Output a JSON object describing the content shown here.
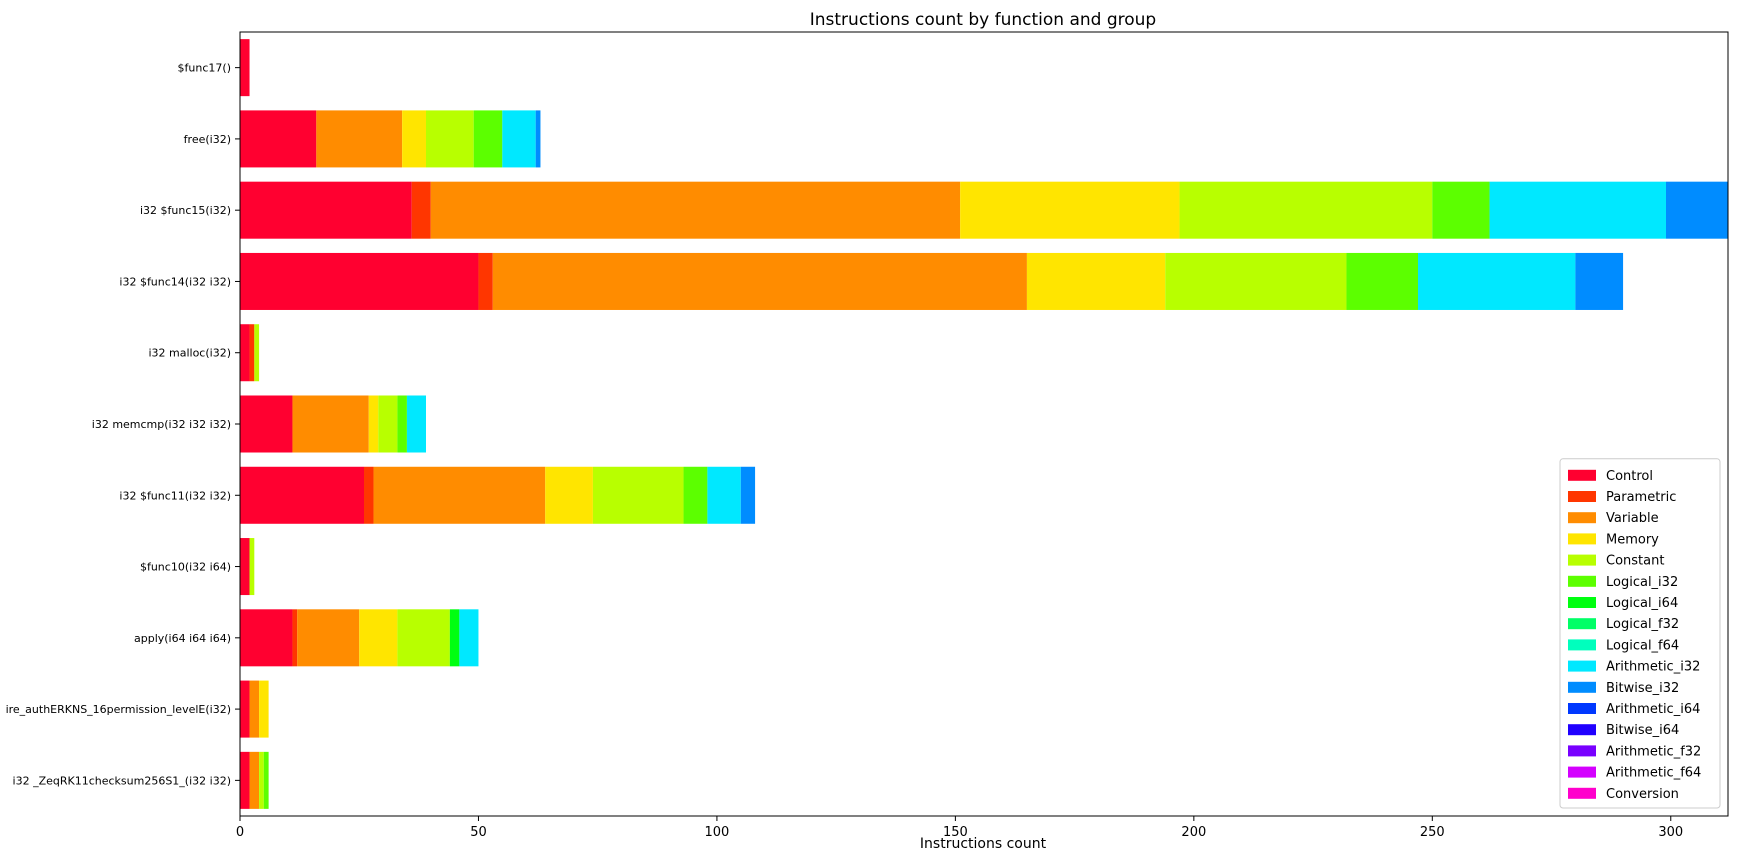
{
  "chart_data": {
    "type": "bar",
    "orientation": "horizontal",
    "stacked": true,
    "title": "Instructions count by function and group",
    "xlabel": "Instructions count",
    "ylabel": "",
    "xlim": [
      0,
      312
    ],
    "x_ticks": [
      0,
      50,
      100,
      150,
      200,
      250,
      300
    ],
    "grid": false,
    "legend_position": "lower-right",
    "categories": [
      "$func17()",
      "free(i32)",
      "i32 $func15(i32)",
      "i32 $func14(i32 i32)",
      "i32 malloc(i32)",
      "i32 memcmp(i32 i32 i32)",
      "i32 $func11(i32 i32)",
      "$func10(i32 i64)",
      "apply(i64 i64 i64)",
      "ire_authERKNS_16permission_levelE(i32)",
      "i32 _ZeqRK11checksum256S1_(i32 i32)"
    ],
    "series": [
      {
        "name": "Control",
        "color": "#ff0030",
        "values": [
          2,
          16,
          36,
          50,
          2,
          11,
          26,
          2,
          11,
          2,
          2
        ]
      },
      {
        "name": "Parametric",
        "color": "#ff3600",
        "values": [
          0,
          0,
          4,
          3,
          1,
          0,
          2,
          0,
          1,
          0,
          0
        ]
      },
      {
        "name": "Variable",
        "color": "#ff8c00",
        "values": [
          0,
          18,
          111,
          112,
          0,
          16,
          36,
          0,
          13,
          2,
          2
        ]
      },
      {
        "name": "Memory",
        "color": "#ffe500",
        "values": [
          0,
          5,
          46,
          29,
          0,
          2,
          10,
          0,
          8,
          2,
          0
        ]
      },
      {
        "name": "Constant",
        "color": "#b8ff00",
        "values": [
          0,
          10,
          53,
          38,
          1,
          4,
          19,
          1,
          11,
          0,
          1
        ]
      },
      {
        "name": "Logical_i32",
        "color": "#5cff00",
        "values": [
          0,
          6,
          12,
          15,
          0,
          2,
          5,
          0,
          0,
          0,
          1
        ]
      },
      {
        "name": "Logical_i64",
        "color": "#00ff10",
        "values": [
          0,
          0,
          0,
          0,
          0,
          0,
          0,
          0,
          2,
          0,
          0
        ]
      },
      {
        "name": "Logical_f32",
        "color": "#00ff66",
        "values": [
          0,
          0,
          0,
          0,
          0,
          0,
          0,
          0,
          0,
          0,
          0
        ]
      },
      {
        "name": "Logical_f64",
        "color": "#00ffbd",
        "values": [
          0,
          0,
          0,
          0,
          0,
          0,
          0,
          0,
          0,
          0,
          0
        ]
      },
      {
        "name": "Arithmetic_i32",
        "color": "#00e8ff",
        "values": [
          0,
          7,
          37,
          33,
          0,
          4,
          7,
          0,
          4,
          0,
          0
        ]
      },
      {
        "name": "Bitwise_i32",
        "color": "#008cff",
        "values": [
          0,
          1,
          13,
          10,
          0,
          0,
          3,
          0,
          0,
          0,
          0
        ]
      },
      {
        "name": "Arithmetic_i64",
        "color": "#0038ff",
        "values": [
          0,
          0,
          0,
          0,
          0,
          0,
          0,
          0,
          0,
          0,
          0
        ]
      },
      {
        "name": "Bitwise_i64",
        "color": "#2000ff",
        "values": [
          0,
          0,
          0,
          0,
          0,
          0,
          0,
          0,
          0,
          0,
          0
        ]
      },
      {
        "name": "Arithmetic_f32",
        "color": "#7800ff",
        "values": [
          0,
          0,
          0,
          0,
          0,
          0,
          0,
          0,
          0,
          0,
          0
        ]
      },
      {
        "name": "Arithmetic_f64",
        "color": "#d400ff",
        "values": [
          0,
          0,
          0,
          0,
          0,
          0,
          0,
          0,
          0,
          0,
          0
        ]
      },
      {
        "name": "Conversion",
        "color": "#ff00cc",
        "values": [
          0,
          0,
          0,
          0,
          0,
          0,
          0,
          0,
          0,
          0,
          0
        ]
      }
    ]
  }
}
